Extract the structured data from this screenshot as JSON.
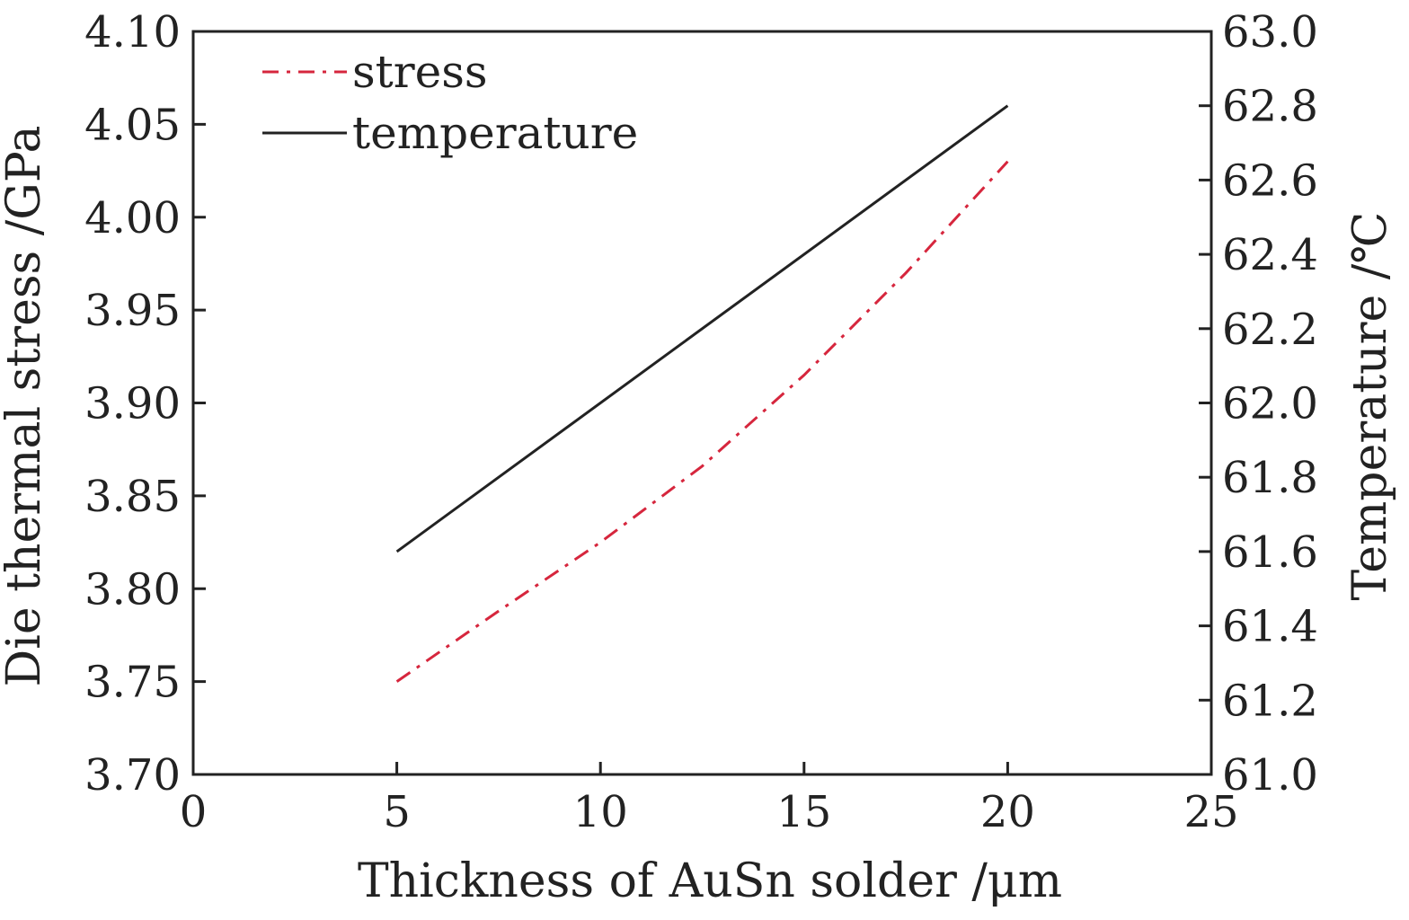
{
  "chart_data": {
    "type": "line",
    "title": "",
    "xlabel": "Thickness of AuSn solder /μm",
    "ylabel": "Die thermal stress /GPa",
    "y2label": "Temperature /℃",
    "xlim": [
      0,
      25
    ],
    "ylim": [
      3.7,
      4.1
    ],
    "y2lim": [
      61.0,
      63.0
    ],
    "x_ticks": [
      "0",
      "5",
      "10",
      "15",
      "20",
      "25"
    ],
    "y_ticks": [
      "3.70",
      "3.75",
      "3.80",
      "3.85",
      "3.90",
      "3.95",
      "4.00",
      "4.05",
      "4.10"
    ],
    "y2_ticks": [
      "61.0",
      "61.2",
      "61.4",
      "61.6",
      "61.8",
      "62.0",
      "62.2",
      "62.4",
      "62.6",
      "62.8",
      "63.0"
    ],
    "grid": false,
    "legend_position": "top-left",
    "series": [
      {
        "name": "stress",
        "axis": "left",
        "color": "#d6263d",
        "dash": "dash-dot",
        "x": [
          5,
          7.5,
          10,
          12.5,
          15,
          17.5,
          20
        ],
        "y": [
          3.75,
          3.788,
          3.825,
          3.866,
          3.915,
          3.97,
          4.03
        ]
      },
      {
        "name": "temperature",
        "axis": "right",
        "color": "#222222",
        "dash": "solid",
        "x": [
          5,
          20
        ],
        "y": [
          61.6,
          62.8
        ]
      }
    ]
  }
}
